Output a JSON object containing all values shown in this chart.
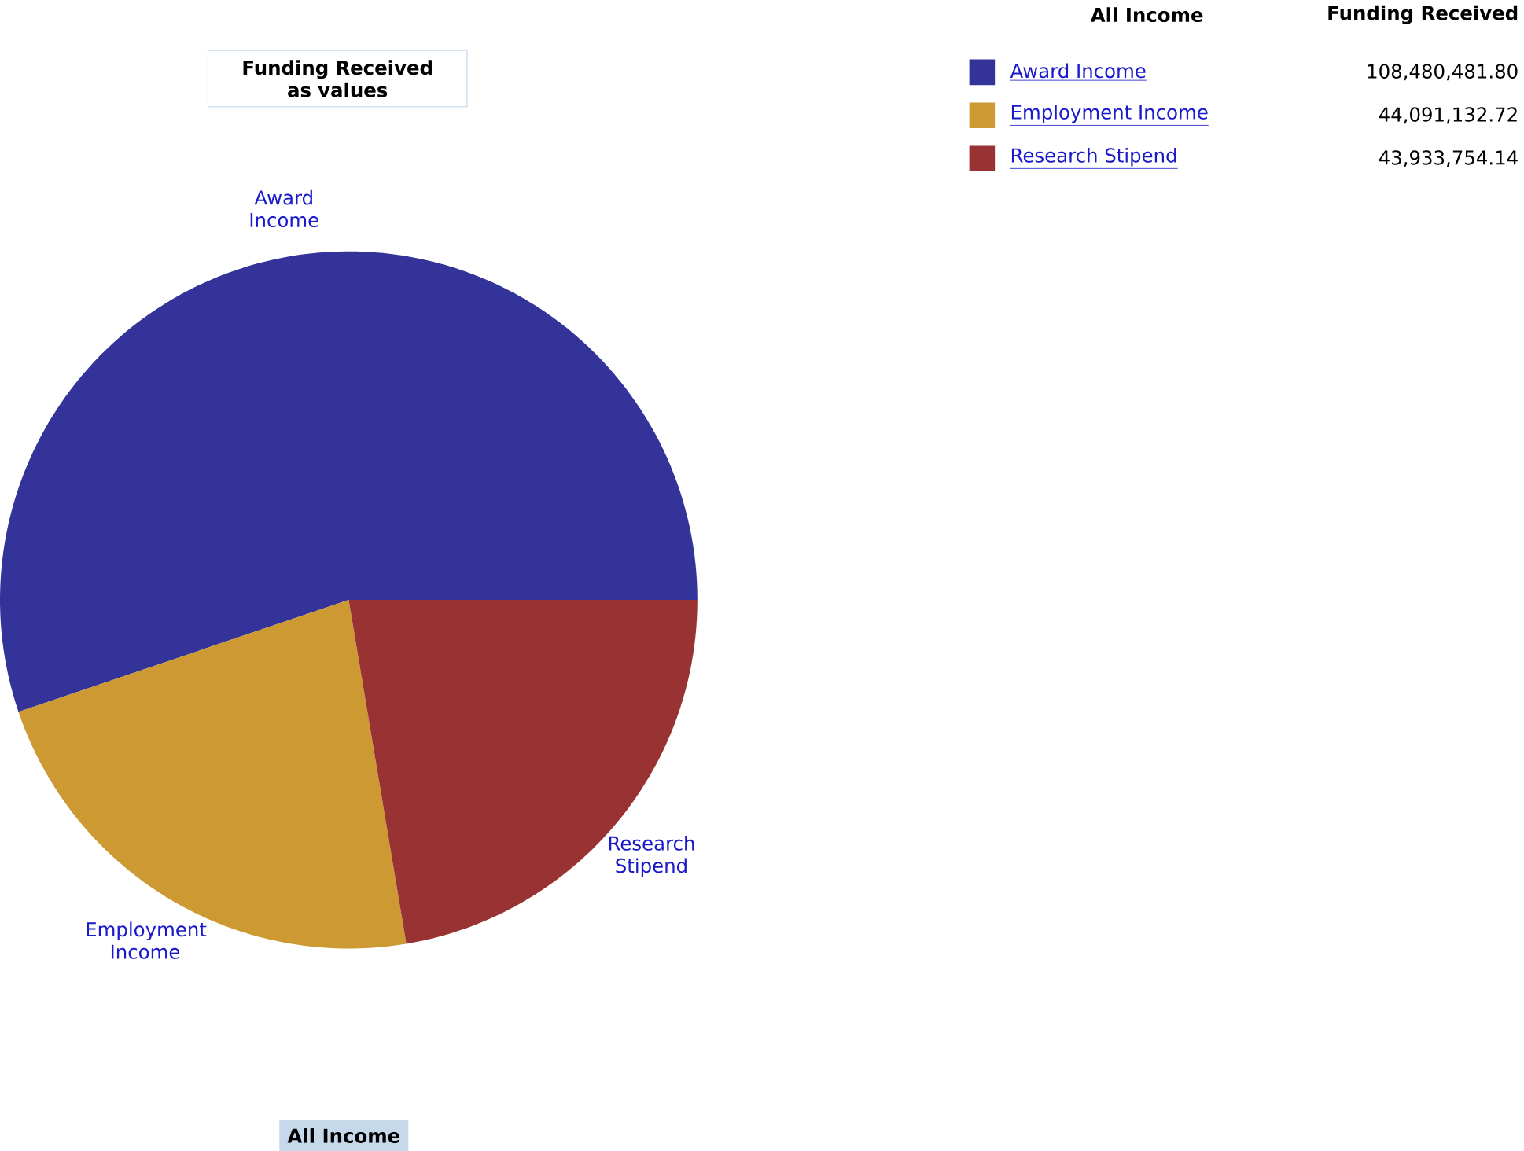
{
  "chart_data": {
    "type": "pie",
    "title": "Funding Received as values",
    "xlabel": "All Income",
    "legend_title": "All Income",
    "annotations": [
      "Funding Received"
    ],
    "categories": [
      "Award Income",
      "Employment Income",
      "Research Stipend"
    ],
    "values": [
      108480481.8,
      44091132.72,
      43933754.14
    ],
    "value_labels": [
      "108,480,481.80",
      "44,091,132.72",
      "43,933,754.14"
    ],
    "colors": [
      "#343399",
      "#cc9933",
      "#993333"
    ],
    "legend": "top right"
  }
}
